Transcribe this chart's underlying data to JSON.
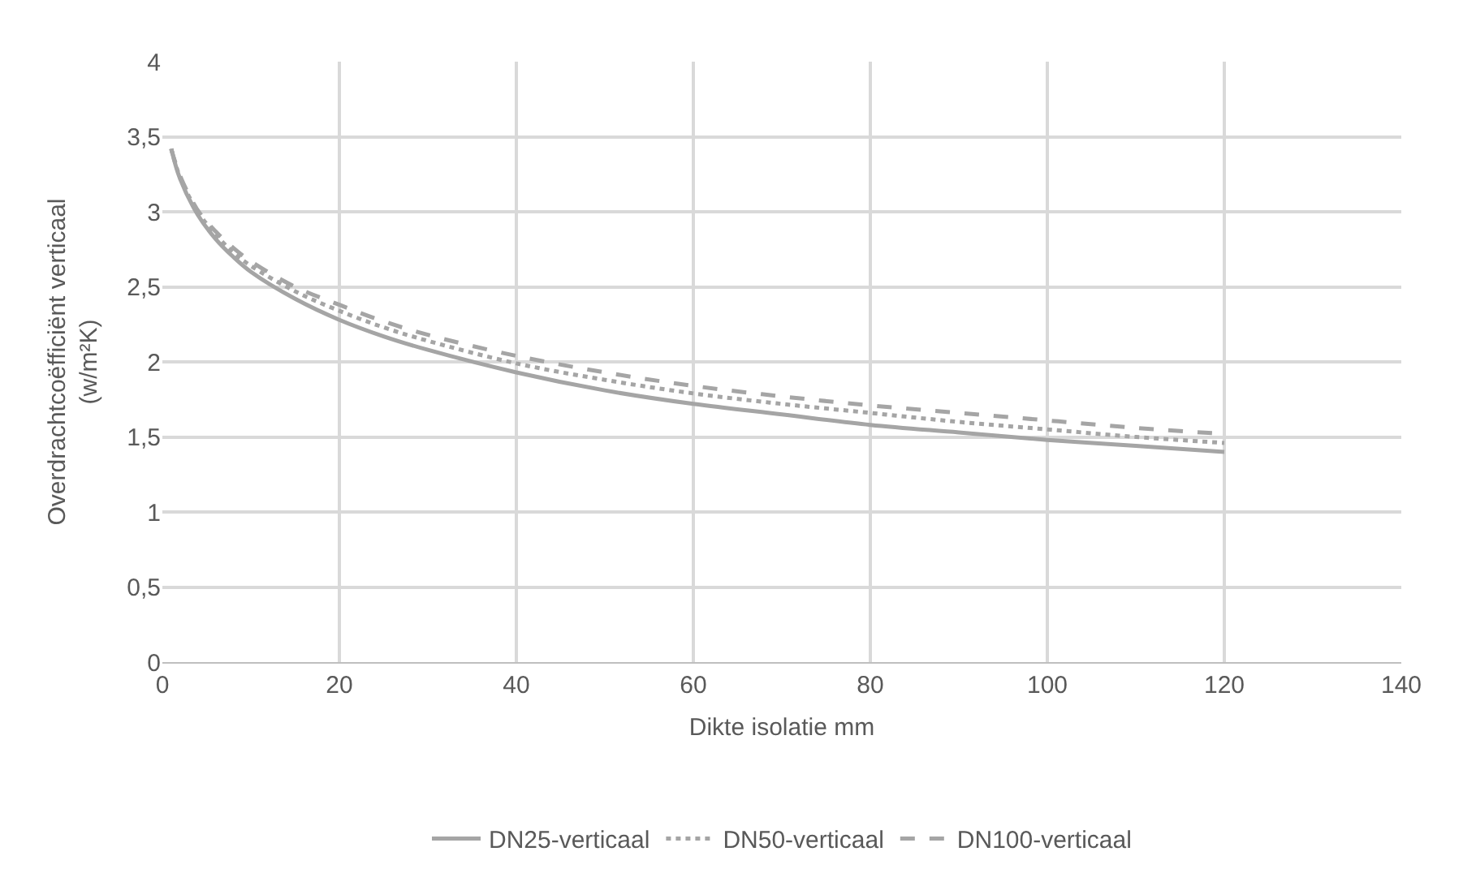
{
  "chart_data": {
    "type": "line",
    "xlabel": "Dikte isolatie mm",
    "ylabel": "Overdrachtcoëfficiënt verticaal (w/m²K)",
    "xlim": [
      0,
      140
    ],
    "xticks": [
      0,
      20,
      40,
      60,
      80,
      100,
      120,
      140
    ],
    "ylim": [
      0,
      4
    ],
    "yticks": [
      0,
      {
        "value": 0.5,
        "label": "0,5"
      },
      1,
      {
        "value": 1.5,
        "label": "1,5"
      },
      2,
      {
        "value": 2.5,
        "label": "2,5"
      },
      3,
      {
        "value": 3.5,
        "label": "3,5"
      },
      4
    ],
    "grid": true,
    "legend": "bottom",
    "marker": "none",
    "x": [
      1,
      2,
      4,
      6,
      8,
      10,
      15,
      20,
      25,
      30,
      40,
      50,
      60,
      70,
      80,
      90,
      100,
      110,
      120
    ],
    "series": [
      {
        "name": "DN25-verticaal",
        "color": "#a5a5a5",
        "line_style": "solid",
        "values": [
          3.42,
          3.22,
          2.98,
          2.82,
          2.7,
          2.6,
          2.42,
          2.28,
          2.17,
          2.08,
          1.93,
          1.81,
          1.72,
          1.65,
          1.58,
          1.53,
          1.48,
          1.44,
          1.4
        ]
      },
      {
        "name": "DN50-verticaal",
        "color": "#a5a5a5",
        "line_style": "dotted",
        "values": [
          3.42,
          3.23,
          3.0,
          2.85,
          2.73,
          2.64,
          2.47,
          2.34,
          2.23,
          2.14,
          1.99,
          1.88,
          1.79,
          1.72,
          1.66,
          1.6,
          1.55,
          1.5,
          1.46
        ]
      },
      {
        "name": "DN100-verticaal",
        "color": "#a5a5a5",
        "line_style": "dashed",
        "values": [
          3.42,
          3.24,
          3.01,
          2.87,
          2.76,
          2.67,
          2.5,
          2.38,
          2.27,
          2.18,
          2.04,
          1.93,
          1.84,
          1.77,
          1.71,
          1.66,
          1.61,
          1.56,
          1.52
        ]
      }
    ]
  }
}
